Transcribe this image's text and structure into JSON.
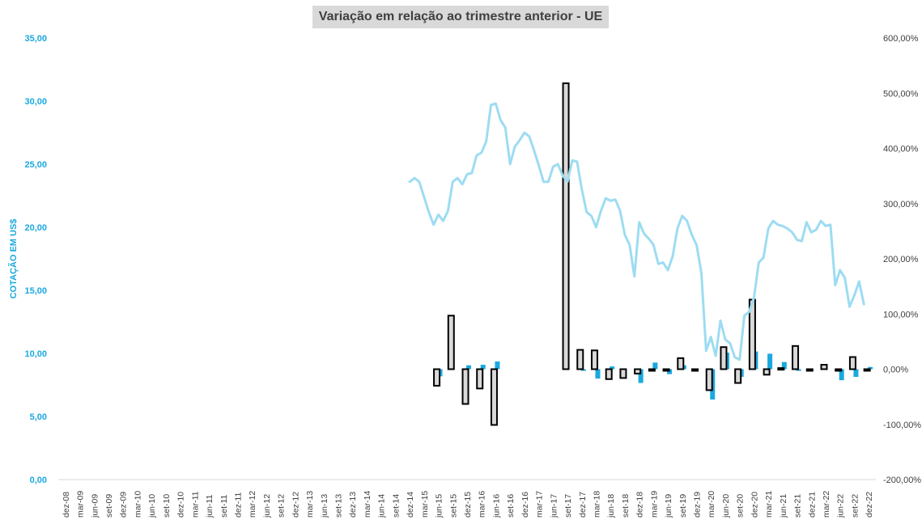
{
  "chart_data": {
    "type": "bar",
    "title": "Variação em relação ao trimestre anterior - UE",
    "ylabel": "COTAÇÃO EM US$",
    "ylim": [
      0,
      35
    ],
    "y_ticks": [
      "0,00",
      "5,00",
      "10,00",
      "15,00",
      "20,00",
      "25,00",
      "30,00",
      "35,00"
    ],
    "y2lim": [
      -200,
      600
    ],
    "y2_ticks": [
      "-200,00%",
      "-100,00%",
      "0,00%",
      "100,00%",
      "200,00%",
      "300,00%",
      "400,00%",
      "500,00%",
      "600,00%"
    ],
    "categories": [
      "dez-08",
      "mar-09",
      "jun-09",
      "set-09",
      "dez-09",
      "mar-10",
      "jun-10",
      "set-10",
      "dez-10",
      "mar-11",
      "jun-11",
      "set-11",
      "dez-11",
      "mar-12",
      "jun-12",
      "set-12",
      "dez-12",
      "mar-13",
      "jun-13",
      "set-13",
      "dez-13",
      "mar-14",
      "jun-14",
      "set-14",
      "dez-14",
      "mar-15",
      "jun-15",
      "set-15",
      "dez-15",
      "mar-16",
      "jun-16",
      "set-16",
      "dez-16",
      "mar-17",
      "jun-17",
      "set-17",
      "dez-17",
      "mar-18",
      "jun-18",
      "set-18",
      "dez-18",
      "mar-19",
      "jun-19",
      "set-19",
      "dez-19",
      "mar-20",
      "jun-20",
      "set-20",
      "dez-20",
      "mar-21",
      "jun-21",
      "set-21",
      "dez-21",
      "mar-22",
      "jun-22",
      "set-22",
      "dez-22"
    ],
    "price_series": {
      "axis": "left",
      "color": "#9ddcf2",
      "x_start": "dez-14",
      "step": "month",
      "values": [
        23.6,
        23.9,
        23.6,
        22.4,
        21.2,
        20.2,
        21.0,
        20.5,
        21.3,
        23.6,
        23.9,
        23.4,
        24.2,
        24.3,
        25.7,
        25.9,
        26.8,
        29.7,
        29.8,
        28.5,
        27.9,
        25.0,
        26.4,
        26.9,
        27.5,
        27.2,
        26.1,
        24.9,
        23.6,
        23.6,
        24.8,
        25.0,
        24.1,
        23.6,
        25.3,
        25.2,
        23.0,
        21.2,
        20.9,
        20.0,
        21.3,
        22.3,
        22.1,
        22.2,
        21.3,
        19.4,
        18.6,
        16.1,
        20.4,
        19.5,
        19.1,
        18.6,
        17.1,
        17.2,
        16.6,
        17.7,
        19.9,
        20.9,
        20.5,
        19.4,
        18.6,
        16.4,
        10.2,
        11.3,
        9.8,
        12.6,
        11.1,
        10.8,
        9.7,
        9.5,
        13.0,
        13.3,
        14.4,
        17.2,
        17.6,
        19.9,
        20.5,
        20.2,
        20.1,
        19.9,
        19.6,
        19.0,
        18.9,
        20.4,
        19.6,
        19.8,
        20.5,
        20.1,
        20.2,
        15.4,
        16.6,
        16.0,
        13.7,
        14.6,
        15.7,
        13.9
      ]
    },
    "series": [
      {
        "axis": "right",
        "color": "#1aa9df",
        "points": [
          {
            "x": "jun-15",
            "y": -13
          },
          {
            "x": "dez-15",
            "y": 7
          },
          {
            "x": "mar-16",
            "y": 8
          },
          {
            "x": "jun-16",
            "y": 14
          },
          {
            "x": "dez-17",
            "y": -3
          },
          {
            "x": "mar-18",
            "y": -17
          },
          {
            "x": "jun-18",
            "y": 5
          },
          {
            "x": "dez-18",
            "y": -25
          },
          {
            "x": "mar-19",
            "y": 12
          },
          {
            "x": "jun-19",
            "y": -9
          },
          {
            "x": "set-19",
            "y": 7
          },
          {
            "x": "mar-20",
            "y": -55
          },
          {
            "x": "jun-20",
            "y": 30
          },
          {
            "x": "set-20",
            "y": -14
          },
          {
            "x": "dez-20",
            "y": 32
          },
          {
            "x": "mar-21",
            "y": 28
          },
          {
            "x": "jun-21",
            "y": 13
          },
          {
            "x": "set-21",
            "y": -3
          },
          {
            "x": "jun-22",
            "y": -20
          },
          {
            "x": "set-22",
            "y": -14
          },
          {
            "x": "dez-22",
            "y": 4
          }
        ]
      },
      {
        "axis": "right",
        "color": "#d9d9d9",
        "border": "#000000",
        "points": [
          {
            "x": "jun-15",
            "y": -30
          },
          {
            "x": "set-15",
            "y": 97
          },
          {
            "x": "dez-15",
            "y": -63
          },
          {
            "x": "mar-16",
            "y": -35
          },
          {
            "x": "jun-16",
            "y": -101
          },
          {
            "x": "set-17",
            "y": 518
          },
          {
            "x": "dez-17",
            "y": 35
          },
          {
            "x": "mar-18",
            "y": 34
          },
          {
            "x": "jun-18",
            "y": -18
          },
          {
            "x": "set-18",
            "y": -16
          },
          {
            "x": "dez-18",
            "y": -8
          },
          {
            "x": "mar-19",
            "y": -2
          },
          {
            "x": "jun-19",
            "y": -2
          },
          {
            "x": "set-19",
            "y": 20
          },
          {
            "x": "dez-19",
            "y": -2
          },
          {
            "x": "mar-20",
            "y": -38
          },
          {
            "x": "jun-20",
            "y": 40
          },
          {
            "x": "set-20",
            "y": -25
          },
          {
            "x": "dez-20",
            "y": 126
          },
          {
            "x": "mar-21",
            "y": -10
          },
          {
            "x": "jun-21",
            "y": 2
          },
          {
            "x": "set-21",
            "y": 42
          },
          {
            "x": "dez-21",
            "y": -2
          },
          {
            "x": "mar-22",
            "y": 8
          },
          {
            "x": "jun-22",
            "y": -2
          },
          {
            "x": "set-22",
            "y": 22
          },
          {
            "x": "dez-22",
            "y": -2
          }
        ]
      }
    ],
    "grid": false,
    "legend": "none"
  }
}
